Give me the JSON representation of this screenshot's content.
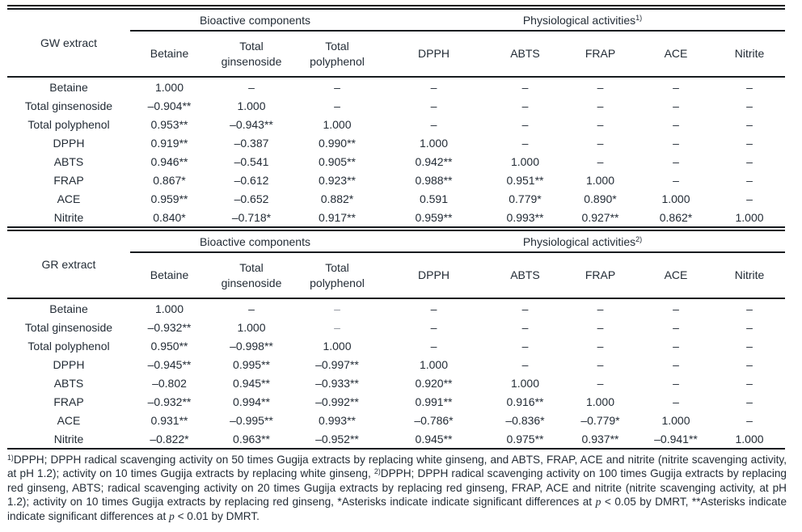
{
  "text_color": "#232c36",
  "rule_color": "#181c20",
  "tables": [
    {
      "id": "gw",
      "row_header_title": "GW extract",
      "group_headers": [
        {
          "label": "Bioactive components",
          "span": 3,
          "sup": ""
        },
        {
          "label": "Physiological activities",
          "span": 5,
          "sup": "1)"
        }
      ],
      "columns": [
        "Betaine",
        "Total ginsenoside",
        "Total polyphenol",
        "DPPH",
        "ABTS",
        "FRAP",
        "ACE",
        "Nitrite"
      ],
      "rows": [
        {
          "label": "Betaine",
          "values": [
            "1.000",
            "–",
            "–",
            "–",
            "–",
            "–",
            "–",
            "–"
          ]
        },
        {
          "label": "Total ginsenoside",
          "values": [
            "–0.904**",
            "1.000",
            "–",
            "–",
            "–",
            "–",
            "–",
            "–"
          ]
        },
        {
          "label": "Total polyphenol",
          "values": [
            "0.953**",
            "–0.943**",
            "1.000",
            "–",
            "–",
            "–",
            "–",
            "–"
          ]
        },
        {
          "label": "DPPH",
          "values": [
            "0.919**",
            "–0.387",
            "0.990**",
            "1.000",
            "–",
            "–",
            "–",
            "–"
          ]
        },
        {
          "label": "ABTS",
          "values": [
            "0.946**",
            "–0.541",
            "0.905**",
            "0.942**",
            "1.000",
            "–",
            "–",
            "–"
          ]
        },
        {
          "label": "FRAP",
          "values": [
            "0.867*",
            "–0.612",
            "0.923**",
            "0.988**",
            "0.951**",
            "1.000",
            "–",
            "–"
          ]
        },
        {
          "label": "ACE",
          "values": [
            "0.959**",
            "–0.652",
            "0.882*",
            "0.591",
            "0.779*",
            "0.890*",
            "1.000",
            "–"
          ]
        },
        {
          "label": "Nitrite",
          "values": [
            "0.840*",
            "–0.718*",
            "0.917**",
            "0.959**",
            "0.993**",
            "0.927**",
            "0.862*",
            "1.000"
          ]
        }
      ],
      "muted_cells": []
    },
    {
      "id": "gr",
      "row_header_title": "GR extract",
      "group_headers": [
        {
          "label": "Bioactive components",
          "span": 3,
          "sup": ""
        },
        {
          "label": "Physiological activities",
          "span": 5,
          "sup": "2)"
        }
      ],
      "columns": [
        "Betaine",
        "Total ginsenoside",
        "Total polyphenol",
        "DPPH",
        "ABTS",
        "FRAP",
        "ACE",
        "Nitrite"
      ],
      "rows": [
        {
          "label": "Betaine",
          "values": [
            "1.000",
            "–",
            "–",
            "–",
            "–",
            "–",
            "–",
            "–"
          ]
        },
        {
          "label": "Total ginsenoside",
          "values": [
            "–0.932**",
            "1.000",
            "–",
            "–",
            "–",
            "–",
            "–",
            "–"
          ]
        },
        {
          "label": "Total polyphenol",
          "values": [
            "0.950**",
            "–0.998**",
            "1.000",
            "–",
            "–",
            "–",
            "–",
            "–"
          ]
        },
        {
          "label": "DPPH",
          "values": [
            "–0.945**",
            "0.995**",
            "–0.997**",
            "1.000",
            "–",
            "–",
            "–",
            "–"
          ]
        },
        {
          "label": "ABTS",
          "values": [
            "–0.802",
            "0.945**",
            "–0.933**",
            "0.920**",
            "1.000",
            "–",
            "–",
            "–"
          ]
        },
        {
          "label": "FRAP",
          "values": [
            "–0.932**",
            "0.994**",
            "–0.992**",
            "0.991**",
            "0.916**",
            "1.000",
            "–",
            "–"
          ]
        },
        {
          "label": "ACE",
          "values": [
            "0.931**",
            "–0.995**",
            "0.993**",
            "–0.786*",
            "–0.836*",
            "–0.779*",
            "1.000",
            "–"
          ]
        },
        {
          "label": "Nitrite",
          "values": [
            "–0.822*",
            "0.963**",
            "–0.952**",
            "0.945**",
            "0.975**",
            "0.937**",
            "–0.941**",
            "1.000"
          ]
        }
      ],
      "muted_cells": [
        [
          0,
          2
        ],
        [
          1,
          2
        ]
      ]
    }
  ],
  "footnote": {
    "segments": [
      {
        "sup": "1)"
      },
      {
        "text": "DPPH; DPPH radical scavenging activity on 50 times Gugija extracts by replacing white ginseng, and ABTS, FRAP, ACE and nitrite (nitrite scavenging activity, at pH 1.2); activity on 10 times Gugija extracts by replacing white ginseng, "
      },
      {
        "sup": "2)"
      },
      {
        "text": "DPPH; DPPH radical scavenging activity on 100 times Gugija extracts by replacing red ginseng, ABTS; radical scavenging activity on 20 times Gugija extracts by replacing red ginseng, FRAP, ACE and nitrite (nitrite scavenging activity, at pH 1.2); activity on 10 times Gugija extracts by replacing red ginseng, *Asterisks indicate indicate significant differences at "
      },
      {
        "italic": "p"
      },
      {
        "text": " < 0.05 by DMRT, **Asterisks indicate indicate significant differences at "
      },
      {
        "italic": "p"
      },
      {
        "text": " < 0.01 by DMRT."
      }
    ]
  }
}
